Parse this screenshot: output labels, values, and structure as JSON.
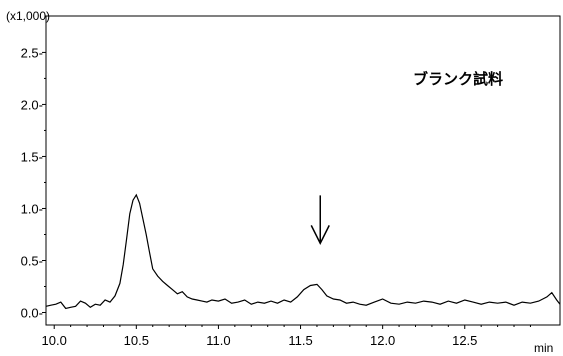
{
  "chart_data": {
    "type": "line",
    "title": "",
    "xlabel": "min",
    "ylabel": "",
    "y_multiplier_label": "(x1,000)",
    "xlim": [
      9.95,
      13.08
    ],
    "ylim": [
      -0.12,
      2.85
    ],
    "x_ticks": [
      10.0,
      10.5,
      11.0,
      11.5,
      12.0,
      12.5
    ],
    "x_tick_labels": [
      "10.0",
      "10.5",
      "11.0",
      "11.5",
      "12.0",
      "12.5"
    ],
    "y_ticks": [
      0.0,
      0.5,
      1.0,
      1.5,
      2.0,
      2.5
    ],
    "y_tick_labels": [
      "0.0-",
      "0.5-",
      "1.0-",
      "1.5-",
      "2.0-",
      "2.5-"
    ],
    "grid": false,
    "annotation": {
      "text": "ブランク試料",
      "arrow_target": {
        "x": 11.62,
        "y": 0.28
      }
    },
    "series": [
      {
        "x": [
          9.95,
          9.98,
          10.01,
          10.04,
          10.07,
          10.1,
          10.13,
          10.16,
          10.19,
          10.22,
          10.25,
          10.28,
          10.31,
          10.34,
          10.37,
          10.4,
          10.42,
          10.44,
          10.46,
          10.48,
          10.5,
          10.52,
          10.54,
          10.56,
          10.58,
          10.6,
          10.63,
          10.66,
          10.69,
          10.72,
          10.75,
          10.78,
          10.81,
          10.84,
          10.87,
          10.9,
          10.93,
          10.96,
          11.0,
          11.04,
          11.08,
          11.12,
          11.16,
          11.2,
          11.24,
          11.28,
          11.32,
          11.36,
          11.4,
          11.44,
          11.48,
          11.52,
          11.56,
          11.6,
          11.63,
          11.66,
          11.7,
          11.74,
          11.78,
          11.82,
          11.86,
          11.9,
          11.95,
          12.0,
          12.05,
          12.1,
          12.15,
          12.2,
          12.25,
          12.3,
          12.35,
          12.4,
          12.45,
          12.5,
          12.55,
          12.6,
          12.65,
          12.7,
          12.75,
          12.8,
          12.85,
          12.9,
          12.95,
          13.0,
          13.03,
          13.06,
          13.08
        ],
        "y": [
          0.06,
          0.07,
          0.08,
          0.1,
          0.04,
          0.05,
          0.06,
          0.11,
          0.09,
          0.05,
          0.08,
          0.07,
          0.12,
          0.1,
          0.16,
          0.28,
          0.46,
          0.7,
          0.95,
          1.08,
          1.13,
          1.05,
          0.9,
          0.75,
          0.58,
          0.42,
          0.35,
          0.3,
          0.26,
          0.22,
          0.18,
          0.2,
          0.15,
          0.13,
          0.12,
          0.11,
          0.1,
          0.12,
          0.11,
          0.13,
          0.09,
          0.1,
          0.12,
          0.08,
          0.1,
          0.09,
          0.11,
          0.09,
          0.12,
          0.1,
          0.15,
          0.22,
          0.26,
          0.27,
          0.22,
          0.16,
          0.13,
          0.12,
          0.09,
          0.1,
          0.08,
          0.07,
          0.1,
          0.13,
          0.09,
          0.08,
          0.1,
          0.09,
          0.11,
          0.1,
          0.08,
          0.11,
          0.09,
          0.12,
          0.1,
          0.08,
          0.1,
          0.09,
          0.1,
          0.07,
          0.1,
          0.09,
          0.11,
          0.15,
          0.19,
          0.12,
          0.08
        ]
      }
    ],
    "colors": {
      "line": "#000000",
      "axis": "#000000",
      "background": "#ffffff"
    }
  }
}
